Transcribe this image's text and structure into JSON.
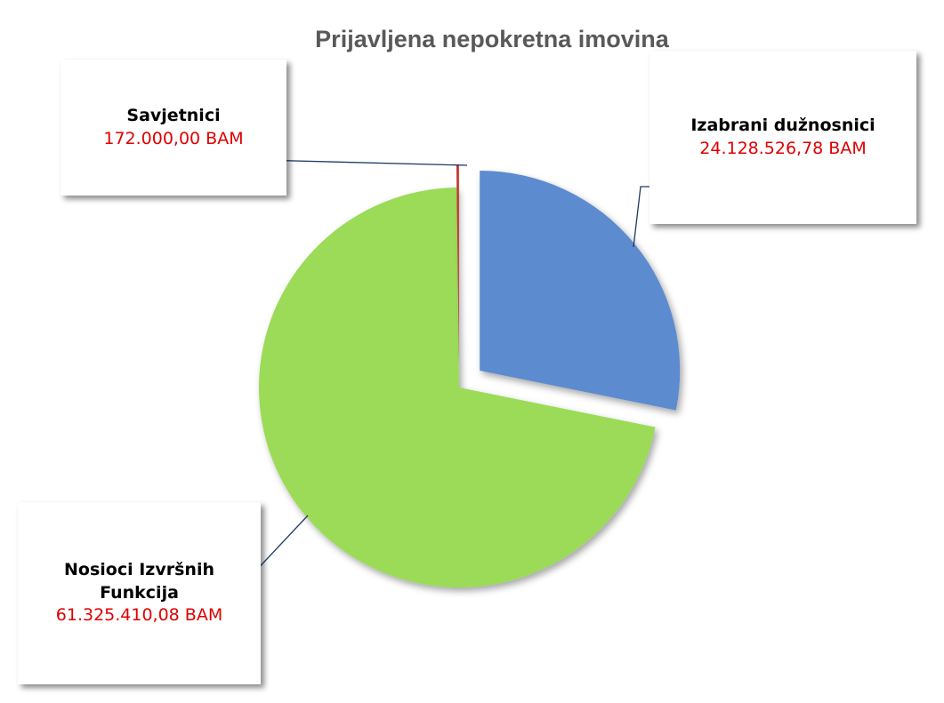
{
  "chart_data": {
    "type": "pie",
    "title": "Prijavljena nepokretna imovina",
    "categories": [
      "Izabrani dužnosnici",
      "Nosioci Izvršnih Funkcija",
      "Savjetnici"
    ],
    "values": [
      24128526.78,
      61325410.08,
      172000.0
    ],
    "value_labels": [
      "24.128.526,78 BAM",
      "61.325.410,08 BAM",
      "172.000,00 BAM"
    ],
    "colors": [
      "#5b8bcf",
      "#9bdb58",
      "#c0392b"
    ]
  }
}
